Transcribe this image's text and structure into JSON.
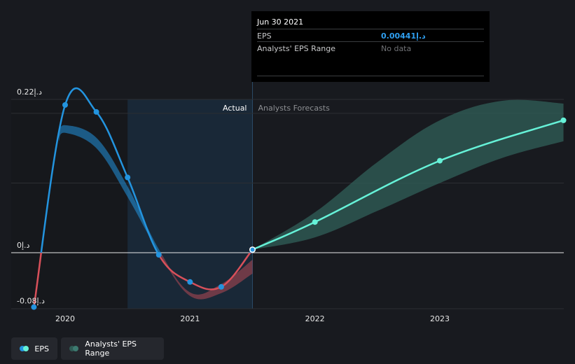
{
  "chart_data": {
    "type": "line",
    "y_min": -0.08,
    "y_max": 0.22,
    "y_tick_labels": [
      {
        "value": 0.22,
        "label": "0.22د.إ"
      },
      {
        "value": 0,
        "label": "0د.إ"
      },
      {
        "value": -0.08,
        "label": "-0.08د.إ"
      }
    ],
    "x_tick_labels": [
      {
        "value": 2020.0,
        "label": "2020"
      },
      {
        "value": 2021.0,
        "label": "2021"
      },
      {
        "value": 2022.0,
        "label": "2022"
      },
      {
        "value": 2023.0,
        "label": "2023"
      }
    ],
    "region_labels": {
      "actual": "Actual",
      "forecast": "Analysts Forecasts"
    },
    "actual_end": 2021.5,
    "series": [
      {
        "name": "EPS",
        "points": [
          {
            "x": 2019.75,
            "y": -0.078
          },
          {
            "x": 2020.0,
            "y": 0.212
          },
          {
            "x": 2020.25,
            "y": 0.202
          },
          {
            "x": 2020.5,
            "y": 0.108
          },
          {
            "x": 2020.75,
            "y": -0.003
          },
          {
            "x": 2021.0,
            "y": -0.042
          },
          {
            "x": 2021.25,
            "y": -0.049
          },
          {
            "x": 2021.5,
            "y": 0.00441
          }
        ]
      },
      {
        "name": "Forecast",
        "points": [
          {
            "x": 2021.5,
            "y": 0.00441
          },
          {
            "x": 2022.0,
            "y": 0.044
          },
          {
            "x": 2023.0,
            "y": 0.132
          },
          {
            "x": 2023.99,
            "y": 0.19
          }
        ]
      }
    ],
    "analyst_range": {
      "name": "Analysts' EPS Range",
      "x": [
        2021.5,
        2022.0,
        2022.5,
        2023.0,
        2023.5,
        2023.99
      ],
      "low": [
        0.00441,
        0.022,
        0.06,
        0.1,
        0.136,
        0.16
      ],
      "high": [
        0.00441,
        0.058,
        0.13,
        0.19,
        0.218,
        0.214
      ]
    },
    "historic_estimate_band": {
      "x": [
        2019.95,
        2020.0,
        2020.25,
        2020.5,
        2020.75,
        2021.0,
        2021.25,
        2021.5
      ],
      "low": [
        0.16,
        0.172,
        0.15,
        0.08,
        0.0,
        -0.062,
        -0.058,
        -0.03
      ],
      "high": [
        0.17,
        0.183,
        0.165,
        0.095,
        0.005,
        -0.057,
        -0.045,
        -0.01
      ]
    }
  },
  "tooltip": {
    "date": "Jun 30 2021",
    "eps_label": "EPS",
    "eps_value": "0.00441د.إ",
    "range_label": "Analysts' EPS Range",
    "range_value": "No data"
  },
  "legend": {
    "eps": "EPS",
    "range": "Analysts' EPS Range"
  },
  "colors": {
    "eps_positive": "#2394df",
    "eps_negative": "#d8505a",
    "forecast": "#66f2d8",
    "range_fill": "#2f5b55",
    "tooltip_value": "#2f9ff0",
    "muted": "#8c8e92"
  }
}
